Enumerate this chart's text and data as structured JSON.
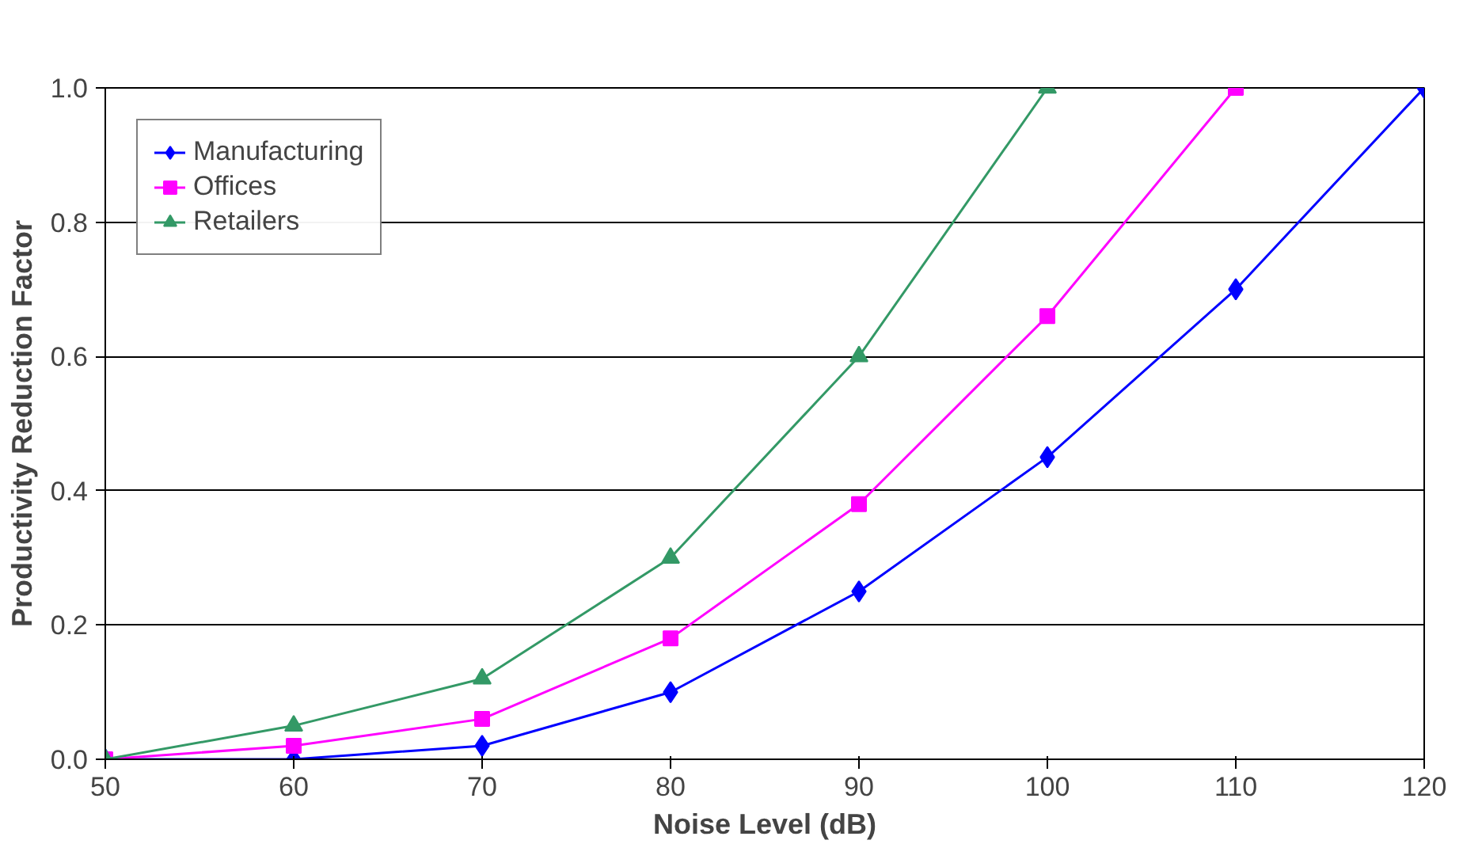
{
  "chart_data": {
    "type": "line",
    "xlabel": "Noise Level (dB)",
    "ylabel": "Productivity Reduction Factor",
    "x": [
      50,
      60,
      70,
      80,
      90,
      100,
      110,
      120
    ],
    "series": [
      {
        "name": "Manufacturing",
        "color": "#0000ff",
        "marker": "diamond",
        "values": [
          0,
          0,
          0.02,
          0.1,
          0.25,
          0.45,
          0.7,
          1.0
        ]
      },
      {
        "name": "Offices",
        "color": "#ff00ff",
        "marker": "square",
        "values": [
          0,
          0.02,
          0.06,
          0.18,
          0.38,
          0.66,
          1.0,
          null
        ]
      },
      {
        "name": "Retailers",
        "color": "#339966",
        "marker": "triangle",
        "values": [
          0,
          0.05,
          0.12,
          0.3,
          0.6,
          1.0,
          null,
          null
        ]
      }
    ],
    "xlim": [
      50,
      120
    ],
    "xticks": [
      50,
      60,
      70,
      80,
      90,
      100,
      110,
      120
    ],
    "ylim": [
      0,
      1.0
    ],
    "yticks": [
      {
        "value": 0,
        "label": "0.0"
      },
      {
        "value": 0.2,
        "label": "0.2"
      },
      {
        "value": 0.4,
        "label": "0.4"
      },
      {
        "value": 0.6,
        "label": "0.6"
      },
      {
        "value": 0.8,
        "label": "0.8"
      },
      {
        "value": 1.0,
        "label": "1.0"
      }
    ],
    "grid": "y",
    "legend": "top left",
    "line_style": "solid"
  }
}
